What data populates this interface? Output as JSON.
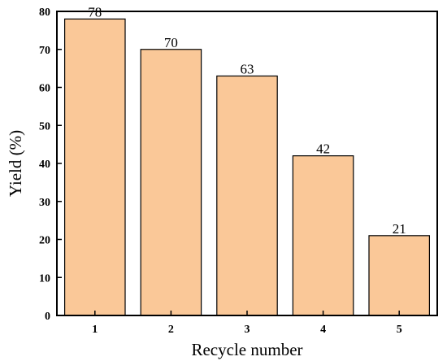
{
  "chart_data": {
    "type": "bar",
    "title": "",
    "xlabel": "Recycle number",
    "ylabel": "Yield (%)",
    "categories": [
      "1",
      "2",
      "3",
      "4",
      "5"
    ],
    "values": [
      78,
      70,
      63,
      42,
      21
    ],
    "data_labels": [
      "78",
      "70",
      "63",
      "42",
      "21"
    ],
    "ylim": [
      0,
      80
    ],
    "y_ticks": [
      0,
      10,
      20,
      30,
      40,
      50,
      60,
      70,
      80
    ],
    "grid": false,
    "bar_color": "#fac898",
    "bar_edge_color": "#000000"
  }
}
